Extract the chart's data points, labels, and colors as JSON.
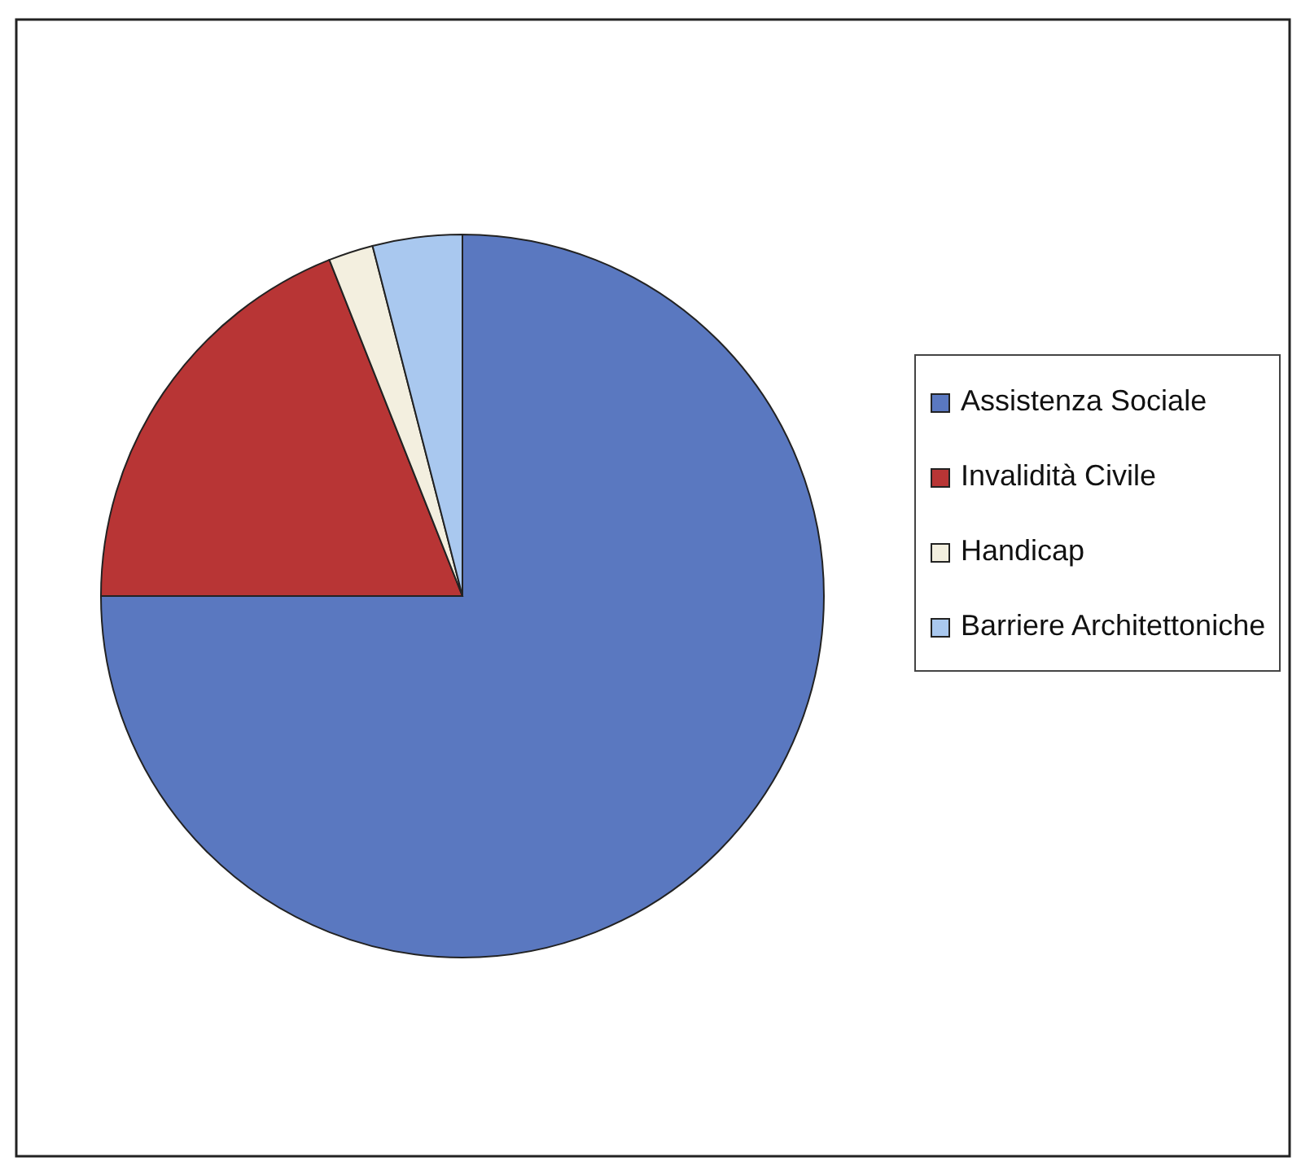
{
  "chart_data": {
    "type": "pie",
    "categories": [
      "Assistenza Sociale",
      "Invalidità Civile",
      "Handicap",
      "Barriere Architettoniche"
    ],
    "values": [
      75,
      19,
      2,
      4
    ],
    "colors": [
      "#5a78c0",
      "#b83535",
      "#f3efdf",
      "#a9c8ef"
    ],
    "legend": "right"
  }
}
